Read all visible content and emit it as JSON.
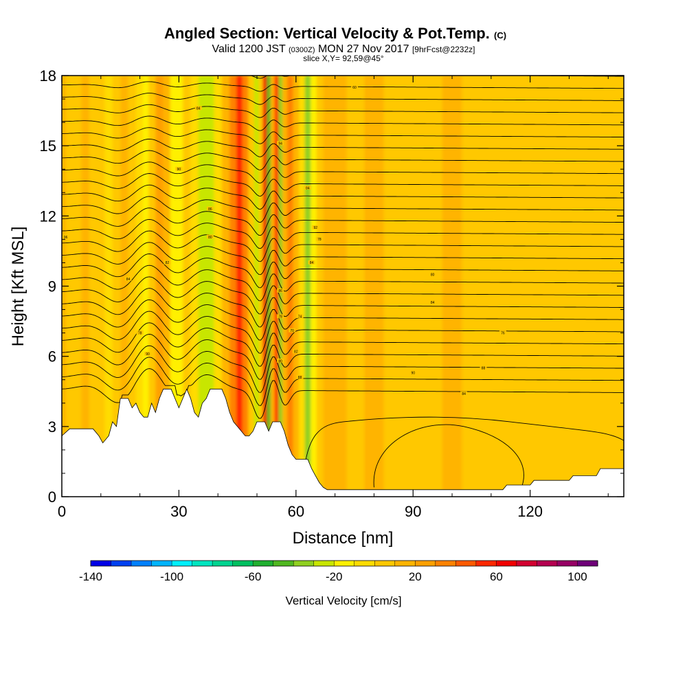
{
  "title": {
    "main": "Angled Section: Vertical Velocity & Pot.Temp.",
    "units_tag": "(C)",
    "valid_a": "Valid 1200 JST",
    "valid_z": "(0300Z)",
    "valid_b": "MON 27 Nov 2017",
    "fcst": "[9hrFcst@2232z]",
    "slice": "slice X,Y= 92,59@45°"
  },
  "chart_data": {
    "type": "heatmap",
    "xlabel": "Distance [nm]",
    "ylabel": "Height [Kft MSL]",
    "xlim": [
      0,
      144
    ],
    "ylim": [
      0,
      18
    ],
    "x_ticks": [
      0,
      30,
      60,
      90,
      120
    ],
    "y_ticks": [
      0,
      3,
      6,
      9,
      12,
      15,
      18
    ],
    "colorbar": {
      "label": "Vertical Velocity [cm/s]",
      "tick_values": [
        -140,
        -100,
        -60,
        -20,
        20,
        60,
        100
      ],
      "min": -140,
      "max": 110,
      "step": 10,
      "colors": [
        "#0000e6",
        "#0040f0",
        "#0080ff",
        "#00b4ff",
        "#00f0ff",
        "#00e6c0",
        "#00d490",
        "#00c060",
        "#20b030",
        "#50b820",
        "#90d020",
        "#c8e600",
        "#fff000",
        "#ffdc00",
        "#ffc800",
        "#ffb400",
        "#ffa000",
        "#ff8200",
        "#ff5a00",
        "#ff2800",
        "#f00000",
        "#d20030",
        "#b40050",
        "#960064",
        "#6e0078"
      ]
    },
    "velocity_columns": [
      {
        "x": 0,
        "v": 15
      },
      {
        "x": 2,
        "v": 8
      },
      {
        "x": 4,
        "v": 5
      },
      {
        "x": 6,
        "v": 10
      },
      {
        "x": 8,
        "v": 8
      },
      {
        "x": 10,
        "v": 0
      },
      {
        "x": 12,
        "v": -8
      },
      {
        "x": 14,
        "v": 5
      },
      {
        "x": 16,
        "v": 12
      },
      {
        "x": 18,
        "v": 8
      },
      {
        "x": 20,
        "v": -2
      },
      {
        "x": 21.5,
        "v": -15
      },
      {
        "x": 23,
        "v": 2
      },
      {
        "x": 25,
        "v": 22
      },
      {
        "x": 27,
        "v": 10
      },
      {
        "x": 28.5,
        "v": -20
      },
      {
        "x": 30,
        "v": -12
      },
      {
        "x": 32,
        "v": 8
      },
      {
        "x": 34,
        "v": -5
      },
      {
        "x": 36,
        "v": -22
      },
      {
        "x": 38,
        "v": -28
      },
      {
        "x": 40,
        "v": -10
      },
      {
        "x": 42,
        "v": 15
      },
      {
        "x": 44,
        "v": 30
      },
      {
        "x": 45.5,
        "v": 52
      },
      {
        "x": 47,
        "v": 38
      },
      {
        "x": 48.5,
        "v": 5
      },
      {
        "x": 50,
        "v": -30
      },
      {
        "x": 51,
        "v": 5
      },
      {
        "x": 52,
        "v": 62
      },
      {
        "x": 53,
        "v": -50
      },
      {
        "x": 54,
        "v": 10
      },
      {
        "x": 55,
        "v": 55
      },
      {
        "x": 56,
        "v": -40
      },
      {
        "x": 57,
        "v": 15
      },
      {
        "x": 58.5,
        "v": 35
      },
      {
        "x": 60,
        "v": 15
      },
      {
        "x": 61.5,
        "v": -10
      },
      {
        "x": 63,
        "v": -35
      },
      {
        "x": 64.5,
        "v": -15
      },
      {
        "x": 66,
        "v": 8
      },
      {
        "x": 68,
        "v": 18
      },
      {
        "x": 71,
        "v": 10
      },
      {
        "x": 75,
        "v": 5
      },
      {
        "x": 80,
        "v": 12
      },
      {
        "x": 85,
        "v": 5
      },
      {
        "x": 90,
        "v": 8
      },
      {
        "x": 95,
        "v": 3
      },
      {
        "x": 100,
        "v": 10
      },
      {
        "x": 105,
        "v": 4
      },
      {
        "x": 110,
        "v": 8
      },
      {
        "x": 115,
        "v": 3
      },
      {
        "x": 120,
        "v": 6
      },
      {
        "x": 125,
        "v": 3
      },
      {
        "x": 130,
        "v": 8
      },
      {
        "x": 135,
        "v": 4
      },
      {
        "x": 140,
        "v": 6
      },
      {
        "x": 144,
        "v": 3
      }
    ],
    "terrain": [
      [
        0,
        2.6
      ],
      [
        2,
        2.9
      ],
      [
        8,
        2.9
      ],
      [
        9.5,
        2.6
      ],
      [
        10.5,
        2.3
      ],
      [
        12,
        2.6
      ],
      [
        13,
        3.2
      ],
      [
        14,
        3.0
      ],
      [
        15,
        4.2
      ],
      [
        17,
        4.2
      ],
      [
        18,
        3.8
      ],
      [
        19,
        4.0
      ],
      [
        20,
        3.6
      ],
      [
        21,
        3.4
      ],
      [
        22,
        3.4
      ],
      [
        23,
        4.0
      ],
      [
        24,
        3.6
      ],
      [
        25,
        4.2
      ],
      [
        26,
        4.6
      ],
      [
        28,
        4.6
      ],
      [
        29,
        4.2
      ],
      [
        30,
        3.8
      ],
      [
        31,
        4.2
      ],
      [
        32,
        4.6
      ],
      [
        33,
        4.2
      ],
      [
        34,
        3.6
      ],
      [
        35,
        3.4
      ],
      [
        36,
        4.0
      ],
      [
        37,
        4.2
      ],
      [
        38,
        4.6
      ],
      [
        41,
        4.6
      ],
      [
        42,
        4.2
      ],
      [
        43,
        3.6
      ],
      [
        44,
        3.2
      ],
      [
        45,
        3.0
      ],
      [
        46,
        2.8
      ],
      [
        47,
        2.6
      ],
      [
        48,
        2.6
      ],
      [
        49,
        2.8
      ],
      [
        50,
        3.2
      ],
      [
        52,
        3.2
      ],
      [
        53,
        2.8
      ],
      [
        54,
        3.2
      ],
      [
        56,
        3.2
      ],
      [
        57,
        2.8
      ],
      [
        58,
        2.2
      ],
      [
        59,
        1.8
      ],
      [
        60,
        1.6
      ],
      [
        63,
        1.6
      ],
      [
        64,
        1.2
      ],
      [
        65,
        0.9
      ],
      [
        66,
        0.6
      ],
      [
        67,
        0.4
      ],
      [
        68,
        0.3
      ],
      [
        113,
        0.3
      ],
      [
        114,
        0.5
      ],
      [
        120,
        0.5
      ],
      [
        121,
        0.7
      ],
      [
        130,
        0.7
      ],
      [
        131,
        0.9
      ],
      [
        137,
        0.9
      ],
      [
        138,
        1.2
      ],
      [
        144,
        1.2
      ]
    ],
    "contour_labels": [
      "96",
      "84",
      "94",
      "90",
      "84",
      "86",
      "92",
      "80",
      "84",
      "82",
      "86",
      "84",
      "80",
      "78",
      "60",
      "78",
      "74",
      "78",
      "76",
      "70",
      "84",
      "82",
      "80",
      "88",
      "90",
      "88",
      "84",
      "90"
    ]
  }
}
